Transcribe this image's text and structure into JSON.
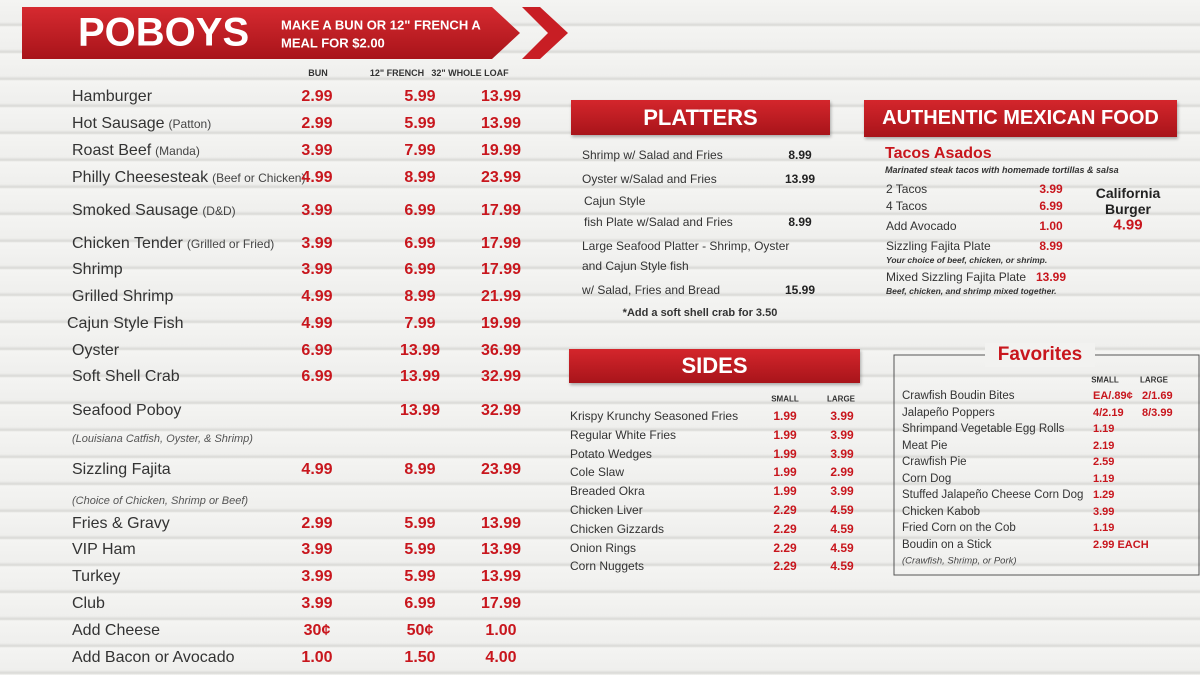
{
  "poboys": {
    "title": "POBOYS",
    "promo": [
      "MAKE A BUN OR 12\" FRENCH A",
      "MEAL FOR $2.00"
    ],
    "headers": [
      "BUN",
      "12\" FRENCH",
      "32\" WHOLE LOAF"
    ],
    "rows": [
      {
        "name": "Hamburger",
        "prices": [
          "2.99",
          "5.99",
          "13.99"
        ]
      },
      {
        "name": "Hot Sausage",
        "note": "(Patton)",
        "prices": [
          "2.99",
          "5.99",
          "13.99"
        ]
      },
      {
        "name": "Roast Beef",
        "note": "(Manda)",
        "prices": [
          "3.99",
          "7.99",
          "19.99"
        ]
      },
      {
        "name": "Philly Cheesesteak",
        "note": "(Beef or Chicken)",
        "prices": [
          "4.99",
          "8.99",
          "23.99"
        ]
      },
      {
        "name": "Smoked Sausage",
        "note": "(D&D)",
        "prices": [
          "3.99",
          "6.99",
          "17.99"
        ]
      },
      {
        "name": "Chicken Tender",
        "note": "(Grilled or Fried)",
        "prices": [
          "3.99",
          "6.99",
          "17.99"
        ]
      },
      {
        "name": "Shrimp",
        "prices": [
          "3.99",
          "6.99",
          "17.99"
        ]
      },
      {
        "name": "Grilled Shrimp",
        "prices": [
          "4.99",
          "8.99",
          "21.99"
        ]
      },
      {
        "name": "Cajun Style Fish",
        "prices": [
          "4.99",
          "7.99",
          "19.99"
        ]
      },
      {
        "name": "Oyster",
        "prices": [
          "6.99",
          "13.99",
          "36.99"
        ]
      },
      {
        "name": "Soft Shell Crab",
        "prices": [
          "6.99",
          "13.99",
          "32.99"
        ]
      },
      {
        "name": "Seafood Poboy",
        "prices": [
          null,
          "13.99",
          "32.99"
        ]
      },
      {
        "comment": "(Louisiana  Catfish, Oyster, & Shrimp)"
      },
      {
        "name": "Sizzling Fajita",
        "prices": [
          "4.99",
          "8.99",
          "23.99"
        ]
      },
      {
        "comment": "(Choice of Chicken, Shrimp or Beef)"
      },
      {
        "name": "Fries & Gravy",
        "prices": [
          "2.99",
          "5.99",
          "13.99"
        ]
      },
      {
        "name": "VIP Ham",
        "prices": [
          "3.99",
          "5.99",
          "13.99"
        ]
      },
      {
        "name": "Turkey",
        "prices": [
          "3.99",
          "5.99",
          "13.99"
        ]
      },
      {
        "name": "Club",
        "prices": [
          "3.99",
          "6.99",
          "17.99"
        ]
      },
      {
        "name": "Add Cheese",
        "prices": [
          "30¢",
          "50¢",
          "1.00"
        ]
      },
      {
        "name": "Add Bacon or Avocado",
        "prices": [
          "1.00",
          "1.50",
          "4.00"
        ]
      }
    ]
  },
  "platters": {
    "title": "PLATTERS",
    "items": [
      {
        "lines": [
          "Shrimp w/ Salad and Fries"
        ],
        "price": "8.99"
      },
      {
        "lines": [
          "Oyster w/Salad and Fries"
        ],
        "price": "13.99"
      },
      {
        "lines": [
          "Cajun Style",
          "fish Plate w/Salad and Fries"
        ],
        "price": "8.99"
      },
      {
        "lines": [
          "Large Seafood Platter - Shrimp, Oyster",
          "and  Cajun Style fish",
          "w/ Salad, Fries and Bread"
        ],
        "price": "15.99"
      }
    ],
    "footnote": "*Add a soft shell crab for 3.50"
  },
  "sides": {
    "title": "SIDES",
    "headers": [
      "SMALL",
      "LARGE"
    ],
    "items": [
      {
        "name": "Krispy Krunchy Seasoned Fries",
        "small": "1.99",
        "large": "3.99"
      },
      {
        "name": "Regular White Fries",
        "small": "1.99",
        "large": "3.99"
      },
      {
        "name": "Potato Wedges",
        "small": "1.99",
        "large": "3.99"
      },
      {
        "name": "Cole Slaw",
        "small": "1.99",
        "large": "2.99"
      },
      {
        "name": "Breaded Okra",
        "small": "1.99",
        "large": "3.99"
      },
      {
        "name": "Chicken Liver",
        "small": "2.29",
        "large": "4.59"
      },
      {
        "name": "Chicken Gizzards",
        "small": "2.29",
        "large": "4.59"
      },
      {
        "name": "Onion Rings",
        "small": "2.29",
        "large": "4.59"
      },
      {
        "name": "Corn Nuggets",
        "small": "2.29",
        "large": "4.59"
      }
    ]
  },
  "mexican": {
    "title": "AUTHENTIC MEXICAN FOOD",
    "subtitle": "Tacos Asados",
    "description": "Marinated steak tacos with homemade tortillas & salsa",
    "items": [
      {
        "name": "2 Tacos",
        "price": "3.99"
      },
      {
        "name": "4 Tacos",
        "price": "6.99"
      },
      {
        "name": "Add Avocado",
        "price": "1.00"
      },
      {
        "name": "Sizzling Fajita Plate",
        "price": "8.99",
        "note": "Your choice of beef, chicken, or shrimp."
      },
      {
        "name": "Mixed Sizzling Fajita Plate",
        "price": "13.99",
        "note": "Beef, chicken, and shrimp mixed together."
      }
    ],
    "burger": {
      "lines": [
        "California",
        "Burger"
      ],
      "price": "4.99"
    }
  },
  "favorites": {
    "title": "Favorites",
    "headers": [
      "SMALL",
      "LARGE"
    ],
    "items": [
      {
        "name": "Crawfish Boudin Bites",
        "small": "EA/.89¢",
        "large": "2/1.69"
      },
      {
        "name": "Jalapeño Poppers",
        "small": "4/2.19",
        "large": "8/3.99"
      },
      {
        "name": "Shrimpand Vegetable Egg Rolls",
        "small": "1.19"
      },
      {
        "name": "Meat Pie",
        "small": "2.19"
      },
      {
        "name": "Crawfish Pie",
        "small": "2.59"
      },
      {
        "name": "Corn Dog",
        "small": "1.19"
      },
      {
        "name": "Stuffed Jalapeño Cheese Corn Dog",
        "small": "1.29"
      },
      {
        "name": "Chicken Kabob",
        "small": "3.99"
      },
      {
        "name": "Fried Corn on the Cob",
        "small": "1.19"
      },
      {
        "name": "Boudin on a Stick",
        "small": "2.99 EACH"
      }
    ],
    "note": "(Crawfish, Shrimp, or Pork)"
  }
}
